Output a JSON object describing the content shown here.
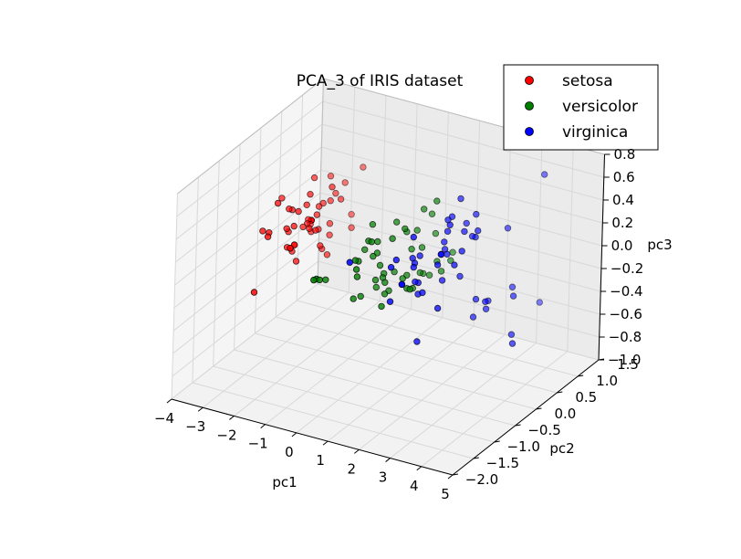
{
  "chart_data": {
    "type": "scatter",
    "title": "PCA_3 of IRIS dataset",
    "xlabel": "pc1",
    "ylabel": "pc2",
    "zlabel": "pc3",
    "xlim": [
      -4,
      5
    ],
    "ylim": [
      -2.0,
      1.5
    ],
    "zlim": [
      -1.0,
      0.8
    ],
    "x_ticks": [
      -4,
      -3,
      -2,
      -1,
      0,
      1,
      2,
      3,
      4,
      5
    ],
    "y_ticks": [
      -2.0,
      -1.5,
      -1.0,
      -0.5,
      0.0,
      0.5,
      1.0,
      1.5
    ],
    "z_ticks": [
      -1.0,
      -0.8,
      -0.6,
      -0.4,
      -0.2,
      0.0,
      0.2,
      0.4,
      0.6,
      0.8
    ],
    "x_tick_labels": [
      "−4",
      "−3",
      "−2",
      "−1",
      "0",
      "1",
      "2",
      "3",
      "4",
      "5"
    ],
    "y_tick_labels": [
      "−2.0",
      "−1.5",
      "−1.0",
      "−0.5",
      "0.0",
      "0.5",
      "1.0",
      "1.5"
    ],
    "z_tick_labels": [
      "−1.0",
      "−0.8",
      "−0.6",
      "−0.4",
      "−0.2",
      "0.0",
      "0.2",
      "0.4",
      "0.6",
      "0.8"
    ],
    "grid": true,
    "legend_position": "top-right",
    "series": [
      {
        "name": "setosa",
        "color": "#ff0000",
        "points": [
          [
            -2.7,
            0.3,
            0.0
          ],
          [
            -2.7,
            -0.2,
            -0.1
          ],
          [
            -2.9,
            -0.1,
            0.0
          ],
          [
            -2.7,
            -0.3,
            0.1
          ],
          [
            -2.7,
            0.3,
            0.0
          ],
          [
            -2.3,
            0.7,
            0.1
          ],
          [
            -2.8,
            -0.1,
            0.2
          ],
          [
            -2.6,
            0.2,
            0.0
          ],
          [
            -2.9,
            -0.6,
            0.1
          ],
          [
            -2.7,
            -0.1,
            -0.1
          ],
          [
            -2.5,
            0.6,
            -0.1
          ],
          [
            -2.6,
            0.1,
            0.2
          ],
          [
            -2.8,
            -0.2,
            -0.1
          ],
          [
            -3.2,
            -0.5,
            0.1
          ],
          [
            -2.6,
            1.2,
            -0.2
          ],
          [
            -2.4,
            1.3,
            0.2
          ],
          [
            -2.6,
            0.8,
            0.1
          ],
          [
            -2.7,
            0.3,
            0.0
          ],
          [
            -2.2,
            0.9,
            -0.2
          ],
          [
            -2.6,
            0.5,
            0.1
          ],
          [
            -2.3,
            0.4,
            -0.3
          ],
          [
            -2.6,
            0.4,
            0.1
          ],
          [
            -3.4,
            0.1,
            0.2
          ],
          [
            -2.3,
            0.1,
            0.0
          ],
          [
            -2.5,
            0.1,
            0.3
          ],
          [
            -2.5,
            -0.2,
            -0.2
          ],
          [
            -2.5,
            0.1,
            0.0
          ],
          [
            -2.6,
            0.4,
            -0.1
          ],
          [
            -2.7,
            0.3,
            -0.1
          ],
          [
            -2.6,
            -0.1,
            0.2
          ],
          [
            -2.6,
            -0.2,
            0.1
          ],
          [
            -2.4,
            0.3,
            -0.2
          ],
          [
            -2.9,
            0.9,
            0.2
          ],
          [
            -2.7,
            1.1,
            0.1
          ],
          [
            -2.7,
            -0.1,
            -0.1
          ],
          [
            -2.9,
            0.0,
            -0.2
          ],
          [
            -2.6,
            0.5,
            -0.3
          ],
          [
            -2.9,
            0.5,
            0.3
          ],
          [
            -3.0,
            -0.5,
            0.1
          ],
          [
            -2.7,
            0.2,
            0.0
          ],
          [
            -2.8,
            0.3,
            0.0
          ],
          [
            -2.9,
            -0.9,
            -0.3
          ],
          [
            -3.0,
            -0.3,
            0.3
          ],
          [
            -2.4,
            0.2,
            0.1
          ],
          [
            -2.2,
            0.4,
            0.3
          ],
          [
            -2.7,
            -0.2,
            -0.1
          ],
          [
            -2.5,
            0.6,
            0.1
          ],
          [
            -2.9,
            -0.1,
            0.2
          ],
          [
            -2.5,
            0.6,
            -0.2
          ],
          [
            -2.7,
            0.1,
            0.0
          ]
        ]
      },
      {
        "name": "versicolor",
        "color": "#007f00",
        "points": [
          [
            1.3,
            0.7,
            -0.1
          ],
          [
            0.9,
            0.3,
            -0.2
          ],
          [
            1.5,
            0.5,
            -0.1
          ],
          [
            0.2,
            -0.8,
            0.1
          ],
          [
            1.1,
            0.1,
            0.1
          ],
          [
            0.6,
            -0.4,
            -0.1
          ],
          [
            1.1,
            0.3,
            -0.2
          ],
          [
            -0.8,
            -1.0,
            0.0
          ],
          [
            1.0,
            0.2,
            0.4
          ],
          [
            0.0,
            -0.7,
            -0.2
          ],
          [
            -0.5,
            -1.3,
            0.1
          ],
          [
            0.5,
            -0.1,
            -0.1
          ],
          [
            0.3,
            -0.6,
            0.3
          ],
          [
            0.9,
            -0.1,
            -0.1
          ],
          [
            -0.1,
            -0.2,
            0.3
          ],
          [
            1.0,
            0.5,
            0.1
          ],
          [
            0.6,
            -0.3,
            -0.2
          ],
          [
            0.2,
            -0.3,
            0.2
          ],
          [
            0.9,
            -0.7,
            -0.2
          ],
          [
            0.0,
            -0.6,
            0.1
          ],
          [
            1.1,
            -0.1,
            -0.2
          ],
          [
            0.4,
            0.0,
            0.3
          ],
          [
            1.3,
            -0.4,
            -0.1
          ],
          [
            0.8,
            -0.1,
            0.3
          ],
          [
            0.8,
            0.2,
            0.2
          ],
          [
            1.0,
            0.4,
            0.3
          ],
          [
            1.4,
            0.2,
            0.5
          ],
          [
            1.6,
            0.2,
            -0.1
          ],
          [
            0.9,
            -0.2,
            -0.1
          ],
          [
            -0.2,
            -0.3,
            0.1
          ],
          [
            0.1,
            -0.7,
            0.0
          ],
          [
            -0.1,
            -0.6,
            0.1
          ],
          [
            0.2,
            -0.3,
            0.1
          ],
          [
            1.4,
            -0.4,
            -0.1
          ],
          [
            0.6,
            -0.4,
            -0.2
          ],
          [
            0.8,
            0.3,
            -0.2
          ],
          [
            1.2,
            0.4,
            -0.1
          ],
          [
            0.8,
            -0.4,
            0.3
          ],
          [
            0.2,
            -0.3,
            -0.2
          ],
          [
            0.1,
            -0.6,
            -0.2
          ],
          [
            0.4,
            -0.6,
            0.3
          ],
          [
            0.9,
            0.0,
            0.1
          ],
          [
            0.2,
            -0.4,
            0.1
          ],
          [
            -0.7,
            -1.0,
            0.0
          ],
          [
            0.3,
            -0.4,
            -0.1
          ],
          [
            0.3,
            -0.2,
            -0.1
          ],
          [
            0.4,
            -0.3,
            -0.1
          ],
          [
            0.6,
            0.1,
            0.2
          ],
          [
            -0.9,
            -0.7,
            -0.1
          ],
          [
            0.3,
            -0.3,
            0.0
          ]
        ]
      },
      {
        "name": "virginica",
        "color": "#0000ff",
        "points": [
          [
            2.5,
            -0.0,
            0.2
          ],
          [
            1.4,
            -0.6,
            0.0
          ],
          [
            2.6,
            0.3,
            -0.3
          ],
          [
            2.0,
            -0.2,
            0.1
          ],
          [
            2.4,
            -0.1,
            0.1
          ],
          [
            3.4,
            0.6,
            -0.3
          ],
          [
            0.5,
            -1.2,
            0.3
          ],
          [
            2.9,
            0.3,
            -0.3
          ],
          [
            2.3,
            -0.4,
            -0.2
          ],
          [
            2.9,
            0.8,
            0.2
          ],
          [
            1.7,
            0.2,
            0.1
          ],
          [
            1.8,
            -0.4,
            -0.1
          ],
          [
            2.2,
            0.2,
            -0.1
          ],
          [
            1.3,
            -0.8,
            0.2
          ],
          [
            1.6,
            -0.5,
            0.4
          ],
          [
            1.9,
            0.1,
            0.4
          ],
          [
            1.9,
            0.0,
            -0.1
          ],
          [
            3.5,
            1.2,
            0.6
          ],
          [
            3.8,
            0.3,
            -0.6
          ],
          [
            1.3,
            -0.8,
            -0.1
          ],
          [
            2.4,
            0.4,
            0.2
          ],
          [
            1.2,
            -0.6,
            0.2
          ],
          [
            3.5,
            0.5,
            -0.6
          ],
          [
            1.4,
            -0.2,
            -0.1
          ],
          [
            2.3,
            0.4,
            0.2
          ],
          [
            2.6,
            0.6,
            -0.4
          ],
          [
            1.3,
            -0.2,
            -0.1
          ],
          [
            1.3,
            -0.1,
            0.1
          ],
          [
            2.1,
            -0.2,
            0.2
          ],
          [
            2.4,
            0.4,
            -0.5
          ],
          [
            2.8,
            0.4,
            -0.4
          ],
          [
            3.2,
            1.4,
            -0.6
          ],
          [
            2.1,
            -0.2,
            0.2
          ],
          [
            1.4,
            -0.2,
            -0.2
          ],
          [
            1.8,
            -0.5,
            -0.5
          ],
          [
            3.1,
            0.8,
            -0.3
          ],
          [
            2.1,
            0.0,
            0.4
          ],
          [
            1.9,
            0.1,
            0.1
          ],
          [
            1.2,
            -0.2,
            0.1
          ],
          [
            2.1,
            0.4,
            0.3
          ],
          [
            2.3,
            0.2,
            0.3
          ],
          [
            1.9,
            0.4,
            0.5
          ],
          [
            1.4,
            -0.6,
            0.0
          ],
          [
            2.6,
            0.3,
            0.3
          ],
          [
            2.4,
            0.4,
            0.4
          ],
          [
            1.9,
            0.2,
            0.4
          ],
          [
            1.5,
            -0.4,
            0.1
          ],
          [
            1.8,
            0.1,
            0.2
          ],
          [
            1.9,
            0.1,
            0.3
          ],
          [
            1.4,
            -0.3,
            0.1
          ]
        ]
      }
    ]
  }
}
